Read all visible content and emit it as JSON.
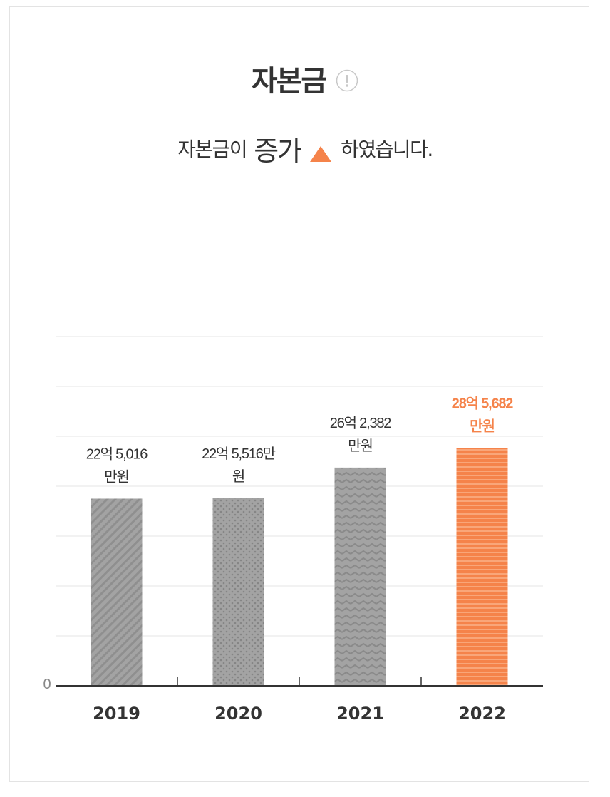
{
  "header": {
    "title": "자본금",
    "info_icon": "info-icon",
    "subtitle_prefix": "자본금이",
    "subtitle_emphasis": "증가",
    "subtitle_suffix": "하였습니다.",
    "trend_icon": "triangle-up-icon"
  },
  "colors": {
    "accent": "#f5834a",
    "bar_gray": "#a3a3a3",
    "grid": "#e6e6e6",
    "text": "#333333"
  },
  "chart_data": {
    "type": "bar",
    "title": "자본금",
    "xlabel": "",
    "ylabel": "",
    "ylim": [
      0,
      4200000000
    ],
    "grid": true,
    "y_tick_labels": [
      "0"
    ],
    "categories": [
      "2019",
      "2020",
      "2021",
      "2022"
    ],
    "values": [
      2250160000,
      2255160000,
      2623820000,
      2856820000
    ],
    "value_labels": [
      [
        "22억 5,016",
        "만원"
      ],
      [
        "22억 5,516만",
        "원"
      ],
      [
        "26억 2,382",
        "만원"
      ],
      [
        "28억 5,682",
        "만원"
      ]
    ],
    "highlight_index": 3
  }
}
